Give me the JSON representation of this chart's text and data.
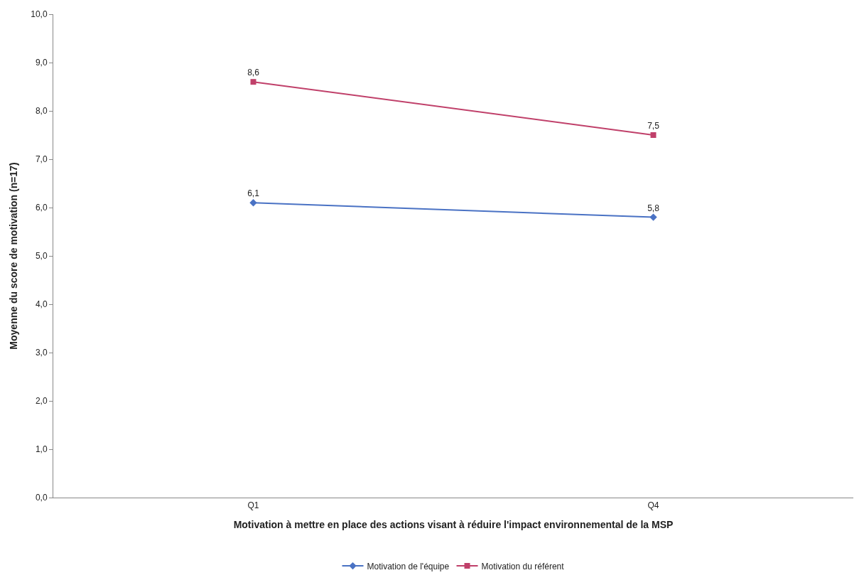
{
  "chart_data": {
    "type": "line",
    "xlabel": "Motivation à mettre en place des actions visant à réduire l'impact environnemental de la MSP",
    "ylabel": "Moyenne du score de motivation (n=17)",
    "categories": [
      "Q1",
      "Q4"
    ],
    "series": [
      {
        "name": "Motivation de l'équipe",
        "color": "#4a72c4",
        "values": [
          6.1,
          5.8
        ],
        "marker": "diamond",
        "value_labels": [
          "6,1",
          "5,8"
        ]
      },
      {
        "name": "Motivation du référent",
        "color": "#c0406a",
        "values": [
          8.6,
          7.5
        ],
        "marker": "square",
        "value_labels": [
          "8,6",
          "7,5"
        ]
      }
    ],
    "ylim": [
      0,
      10
    ],
    "yticks": [
      {
        "value": 0,
        "label": "0,0"
      },
      {
        "value": 1,
        "label": "1,0"
      },
      {
        "value": 2,
        "label": "2,0"
      },
      {
        "value": 3,
        "label": "3,0"
      },
      {
        "value": 4,
        "label": "4,0"
      },
      {
        "value": 5,
        "label": "5,0"
      },
      {
        "value": 6,
        "label": "6,0"
      },
      {
        "value": 7,
        "label": "7,0"
      },
      {
        "value": 8,
        "label": "8,0"
      },
      {
        "value": 9,
        "label": "9,0"
      },
      {
        "value": 10,
        "label": "10,0"
      }
    ],
    "legend": "bottom",
    "line_style": "solid"
  }
}
